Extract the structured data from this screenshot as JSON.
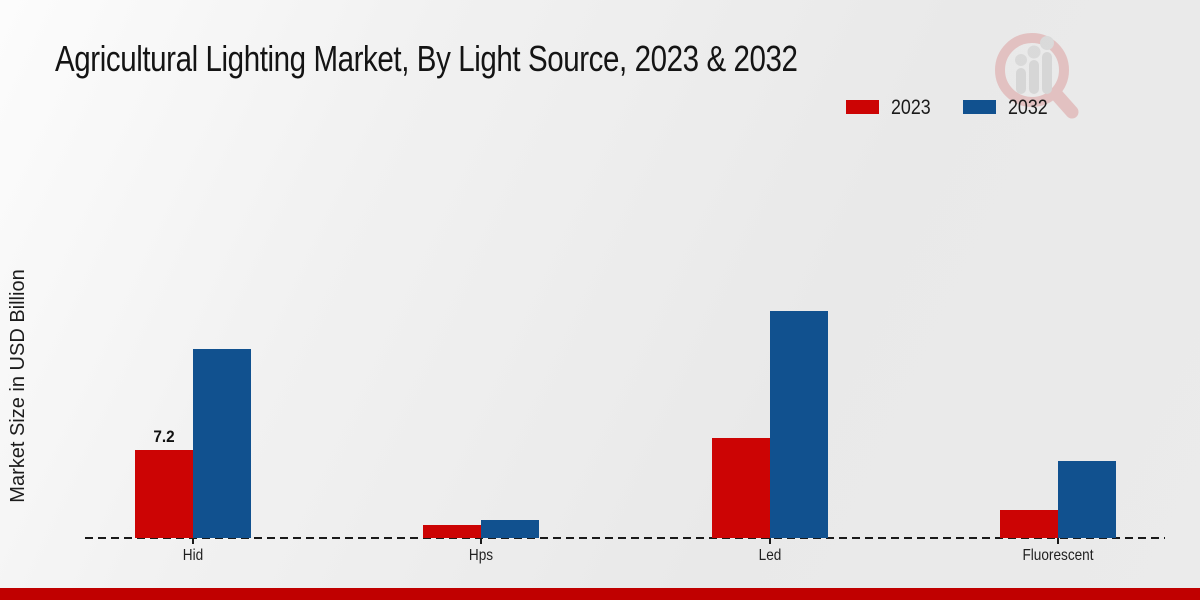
{
  "page": {
    "title": "Agricultural Lighting Market, By Light Source, 2023 & 2032",
    "footer_stripe_color": "#c00000",
    "background_color": "#ebebeb",
    "watermark_icon": "magnifier-bar-chart-logo"
  },
  "chart_data": {
    "type": "bar",
    "title": "Agricultural Lighting Market, By Light Source, 2023 & 2032",
    "xlabel": "",
    "ylabel": "Market Size in USD Billion",
    "categories": [
      "Hid",
      "Hps",
      "Led",
      "Fluorescent"
    ],
    "series": [
      {
        "name": "2023",
        "color": "#cc0404",
        "values": [
          7.2,
          1.1,
          8.2,
          2.3
        ]
      },
      {
        "name": "2032",
        "color": "#11518f",
        "values": [
          15.5,
          1.5,
          18.6,
          6.3
        ]
      }
    ],
    "data_labels": [
      {
        "series_index": 0,
        "category_index": 0,
        "text": "7.2"
      }
    ],
    "ylim": [
      0,
      20
    ],
    "grid": false,
    "axis_line_style": "dashed",
    "legend_position": "top-right",
    "legend": [
      "2023",
      "2032"
    ]
  }
}
